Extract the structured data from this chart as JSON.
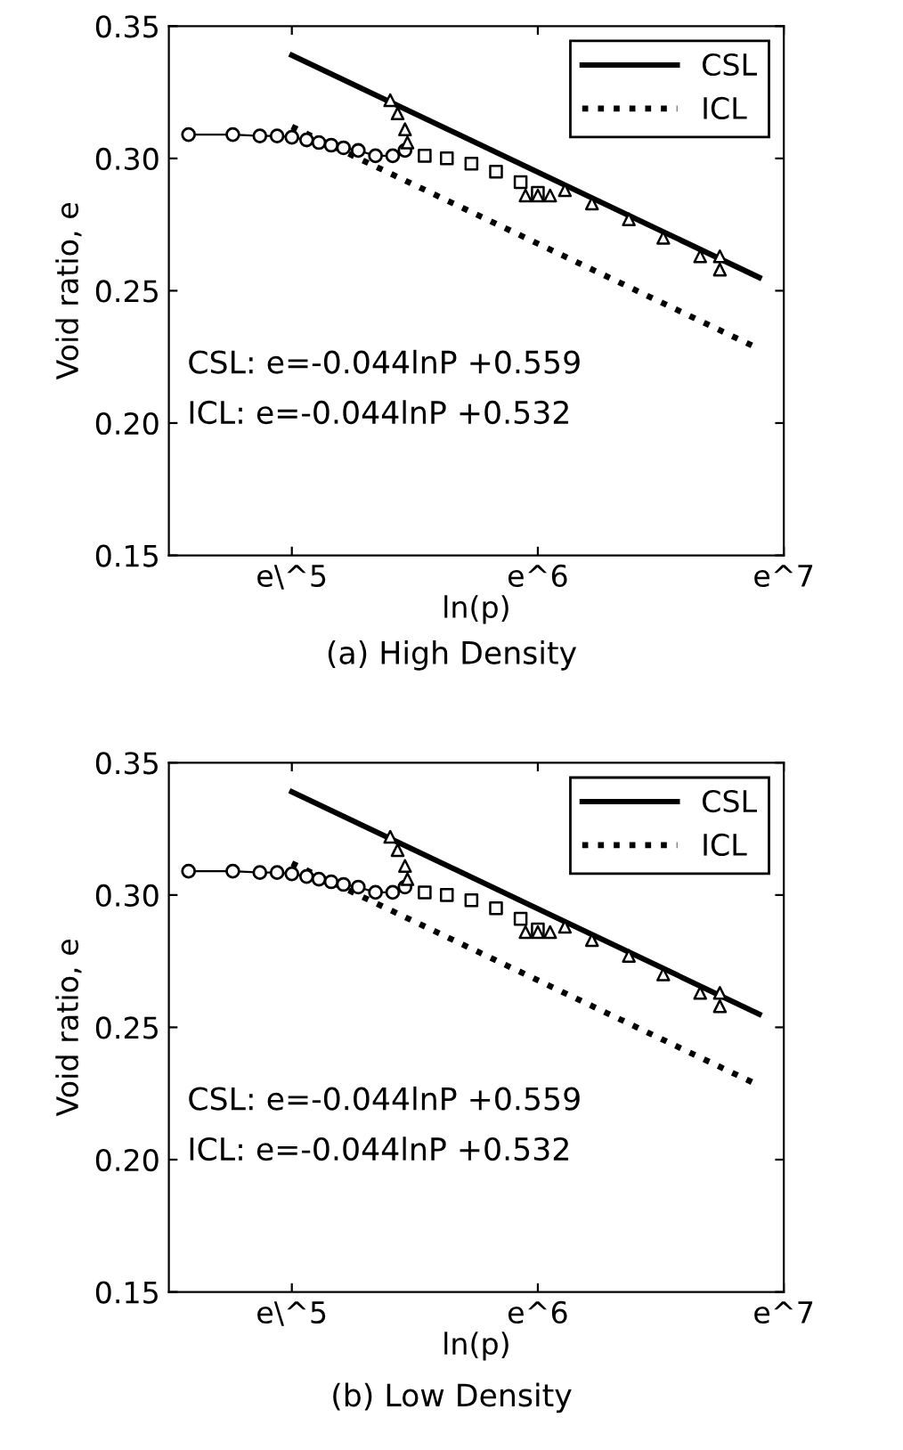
{
  "chart_data": [
    {
      "type": "line",
      "title": "(a) High Density",
      "xlabel": "ln(p)",
      "ylabel": "Void ratio, e",
      "xlim": [
        4.5,
        7.0
      ],
      "xticks": [
        {
          "value": 5,
          "label": "e\\^5"
        },
        {
          "value": 6,
          "label": "e^6"
        },
        {
          "value": 7,
          "label": "e^7"
        }
      ],
      "ylim": [
        0.15,
        0.35
      ],
      "yticks": [
        {
          "value": 0.15,
          "label": "0.15"
        },
        {
          "value": 0.2,
          "label": "0.20"
        },
        {
          "value": 0.25,
          "label": "0.25"
        },
        {
          "value": 0.3,
          "label": "0.30"
        },
        {
          "value": 0.35,
          "label": "0.35"
        }
      ],
      "legend": "top right",
      "grid": false,
      "annotations": [
        "CSL: e=-0.044lnP +0.559",
        "ICL: e=-0.044lnP +0.532"
      ],
      "series": [
        {
          "name": "CSL",
          "color": "#000000",
          "line_style": "solid",
          "marker": "none",
          "x": [
            5.0,
            6.9
          ],
          "values": [
            0.339,
            0.255
          ]
        },
        {
          "name": "ICL",
          "color": "#000000",
          "line_style": "dotted",
          "marker": "none",
          "x": [
            5.0,
            6.9
          ],
          "values": [
            0.312,
            0.228
          ]
        },
        {
          "color": "#000000",
          "line_style": "solid",
          "marker": "circle",
          "x": [
            4.58,
            4.76,
            4.87,
            4.94,
            5.0,
            5.06,
            5.11,
            5.16,
            5.21,
            5.27,
            5.34,
            5.41,
            5.46
          ],
          "values": [
            0.309,
            0.309,
            0.3085,
            0.3085,
            0.308,
            0.307,
            0.306,
            0.305,
            0.304,
            0.303,
            0.301,
            0.301,
            0.303
          ]
        },
        {
          "type": "scatter",
          "color": "#000000",
          "marker": "square",
          "x": [
            5.54,
            5.63,
            5.73,
            5.83,
            5.93,
            6.0
          ],
          "values": [
            0.301,
            0.3,
            0.298,
            0.295,
            0.291,
            0.287
          ]
        },
        {
          "type": "scatter",
          "color": "#000000",
          "marker": "triangle",
          "x": [
            5.47,
            5.46,
            5.43,
            5.4,
            5.95,
            6.0,
            6.05,
            6.11,
            6.22,
            6.37,
            6.51,
            6.66,
            6.74,
            6.74
          ],
          "values": [
            0.306,
            0.311,
            0.317,
            0.322,
            0.286,
            0.286,
            0.286,
            0.288,
            0.283,
            0.277,
            0.27,
            0.263,
            0.258,
            0.263
          ]
        }
      ]
    },
    {
      "type": "line",
      "title": "(b) Low Density",
      "xlabel": "ln(p)",
      "ylabel": "Void ratio, e",
      "xlim": [
        4.5,
        7.0
      ],
      "xticks": [
        {
          "value": 5,
          "label": "e\\^5"
        },
        {
          "value": 6,
          "label": "e^6"
        },
        {
          "value": 7,
          "label": "e^7"
        }
      ],
      "ylim": [
        0.15,
        0.35
      ],
      "yticks": [
        {
          "value": 0.15,
          "label": "0.15"
        },
        {
          "value": 0.2,
          "label": "0.20"
        },
        {
          "value": 0.25,
          "label": "0.25"
        },
        {
          "value": 0.3,
          "label": "0.30"
        },
        {
          "value": 0.35,
          "label": "0.35"
        }
      ],
      "legend": "top right",
      "grid": false,
      "annotations": [
        "CSL: e=-0.044lnP +0.559",
        "ICL: e=-0.044lnP +0.532"
      ],
      "series": [
        {
          "name": "CSL",
          "color": "#000000",
          "line_style": "solid",
          "marker": "none",
          "x": [
            5.0,
            6.9
          ],
          "values": [
            0.339,
            0.255
          ]
        },
        {
          "name": "ICL",
          "color": "#000000",
          "line_style": "dotted",
          "marker": "none",
          "x": [
            5.0,
            6.9
          ],
          "values": [
            0.312,
            0.228
          ]
        },
        {
          "color": "#000000",
          "line_style": "solid",
          "marker": "circle",
          "x": [
            4.58,
            4.76,
            4.87,
            4.94,
            5.0,
            5.06,
            5.11,
            5.16,
            5.21,
            5.27,
            5.34,
            5.41,
            5.46
          ],
          "values": [
            0.309,
            0.309,
            0.3085,
            0.3085,
            0.308,
            0.307,
            0.306,
            0.305,
            0.304,
            0.303,
            0.301,
            0.301,
            0.303
          ]
        },
        {
          "type": "scatter",
          "color": "#000000",
          "marker": "square",
          "x": [
            5.54,
            5.63,
            5.73,
            5.83,
            5.93,
            6.0
          ],
          "values": [
            0.301,
            0.3,
            0.298,
            0.295,
            0.291,
            0.287
          ]
        },
        {
          "type": "scatter",
          "color": "#000000",
          "marker": "triangle",
          "x": [
            5.47,
            5.46,
            5.43,
            5.4,
            5.95,
            6.0,
            6.05,
            6.11,
            6.22,
            6.37,
            6.51,
            6.66,
            6.74,
            6.74
          ],
          "values": [
            0.306,
            0.311,
            0.317,
            0.322,
            0.286,
            0.286,
            0.286,
            0.288,
            0.283,
            0.277,
            0.27,
            0.263,
            0.258,
            0.263
          ]
        }
      ]
    }
  ]
}
